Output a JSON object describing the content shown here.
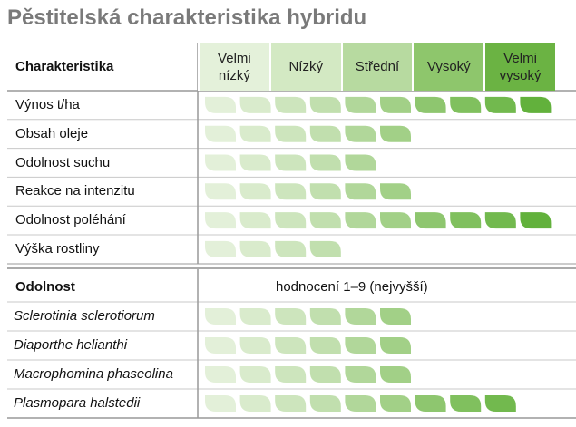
{
  "title": "Pěstitelská charakteristika hybridu",
  "header": {
    "label": "Charakteristika",
    "levels": [
      {
        "label": "Velmi nízký",
        "color": "#e4f1da"
      },
      {
        "label": "Nízký",
        "color": "#d3e9c3"
      },
      {
        "label": "Střední",
        "color": "#b7daa0"
      },
      {
        "label": "Vysoký",
        "color": "#8ec66c"
      },
      {
        "label": "Velmi vysoký",
        "color": "#6bb343"
      }
    ]
  },
  "characteristics": [
    {
      "label": "Výnos t/ha",
      "leaves": 10
    },
    {
      "label": "Obsah oleje",
      "leaves": 6
    },
    {
      "label": "Odolnost suchu",
      "leaves": 5
    },
    {
      "label": "Reakce na intenzitu",
      "leaves": 6
    },
    {
      "label": "Odolnost poléhání",
      "leaves": 10
    },
    {
      "label": "Výška rostliny",
      "leaves": 4
    }
  ],
  "resistance": {
    "label": "Odolnost",
    "scale": "hodnocení 1–9 (nejvyšší)",
    "rows": [
      {
        "label": "Sclerotinia sclerotiorum",
        "leaves": 6
      },
      {
        "label": "Diaporthe helianthi",
        "leaves": 6
      },
      {
        "label": "Macrophomina phaseolina",
        "leaves": 6
      },
      {
        "label": "Plasmopara halstedii",
        "leaves": 9
      }
    ]
  },
  "leaf_colors": [
    "#e3f0d9",
    "#d9ebcc",
    "#cde5bd",
    "#c1dfae",
    "#b1d79a",
    "#a2d087",
    "#8ec66f",
    "#80c05e",
    "#72b94e",
    "#62b13c"
  ]
}
